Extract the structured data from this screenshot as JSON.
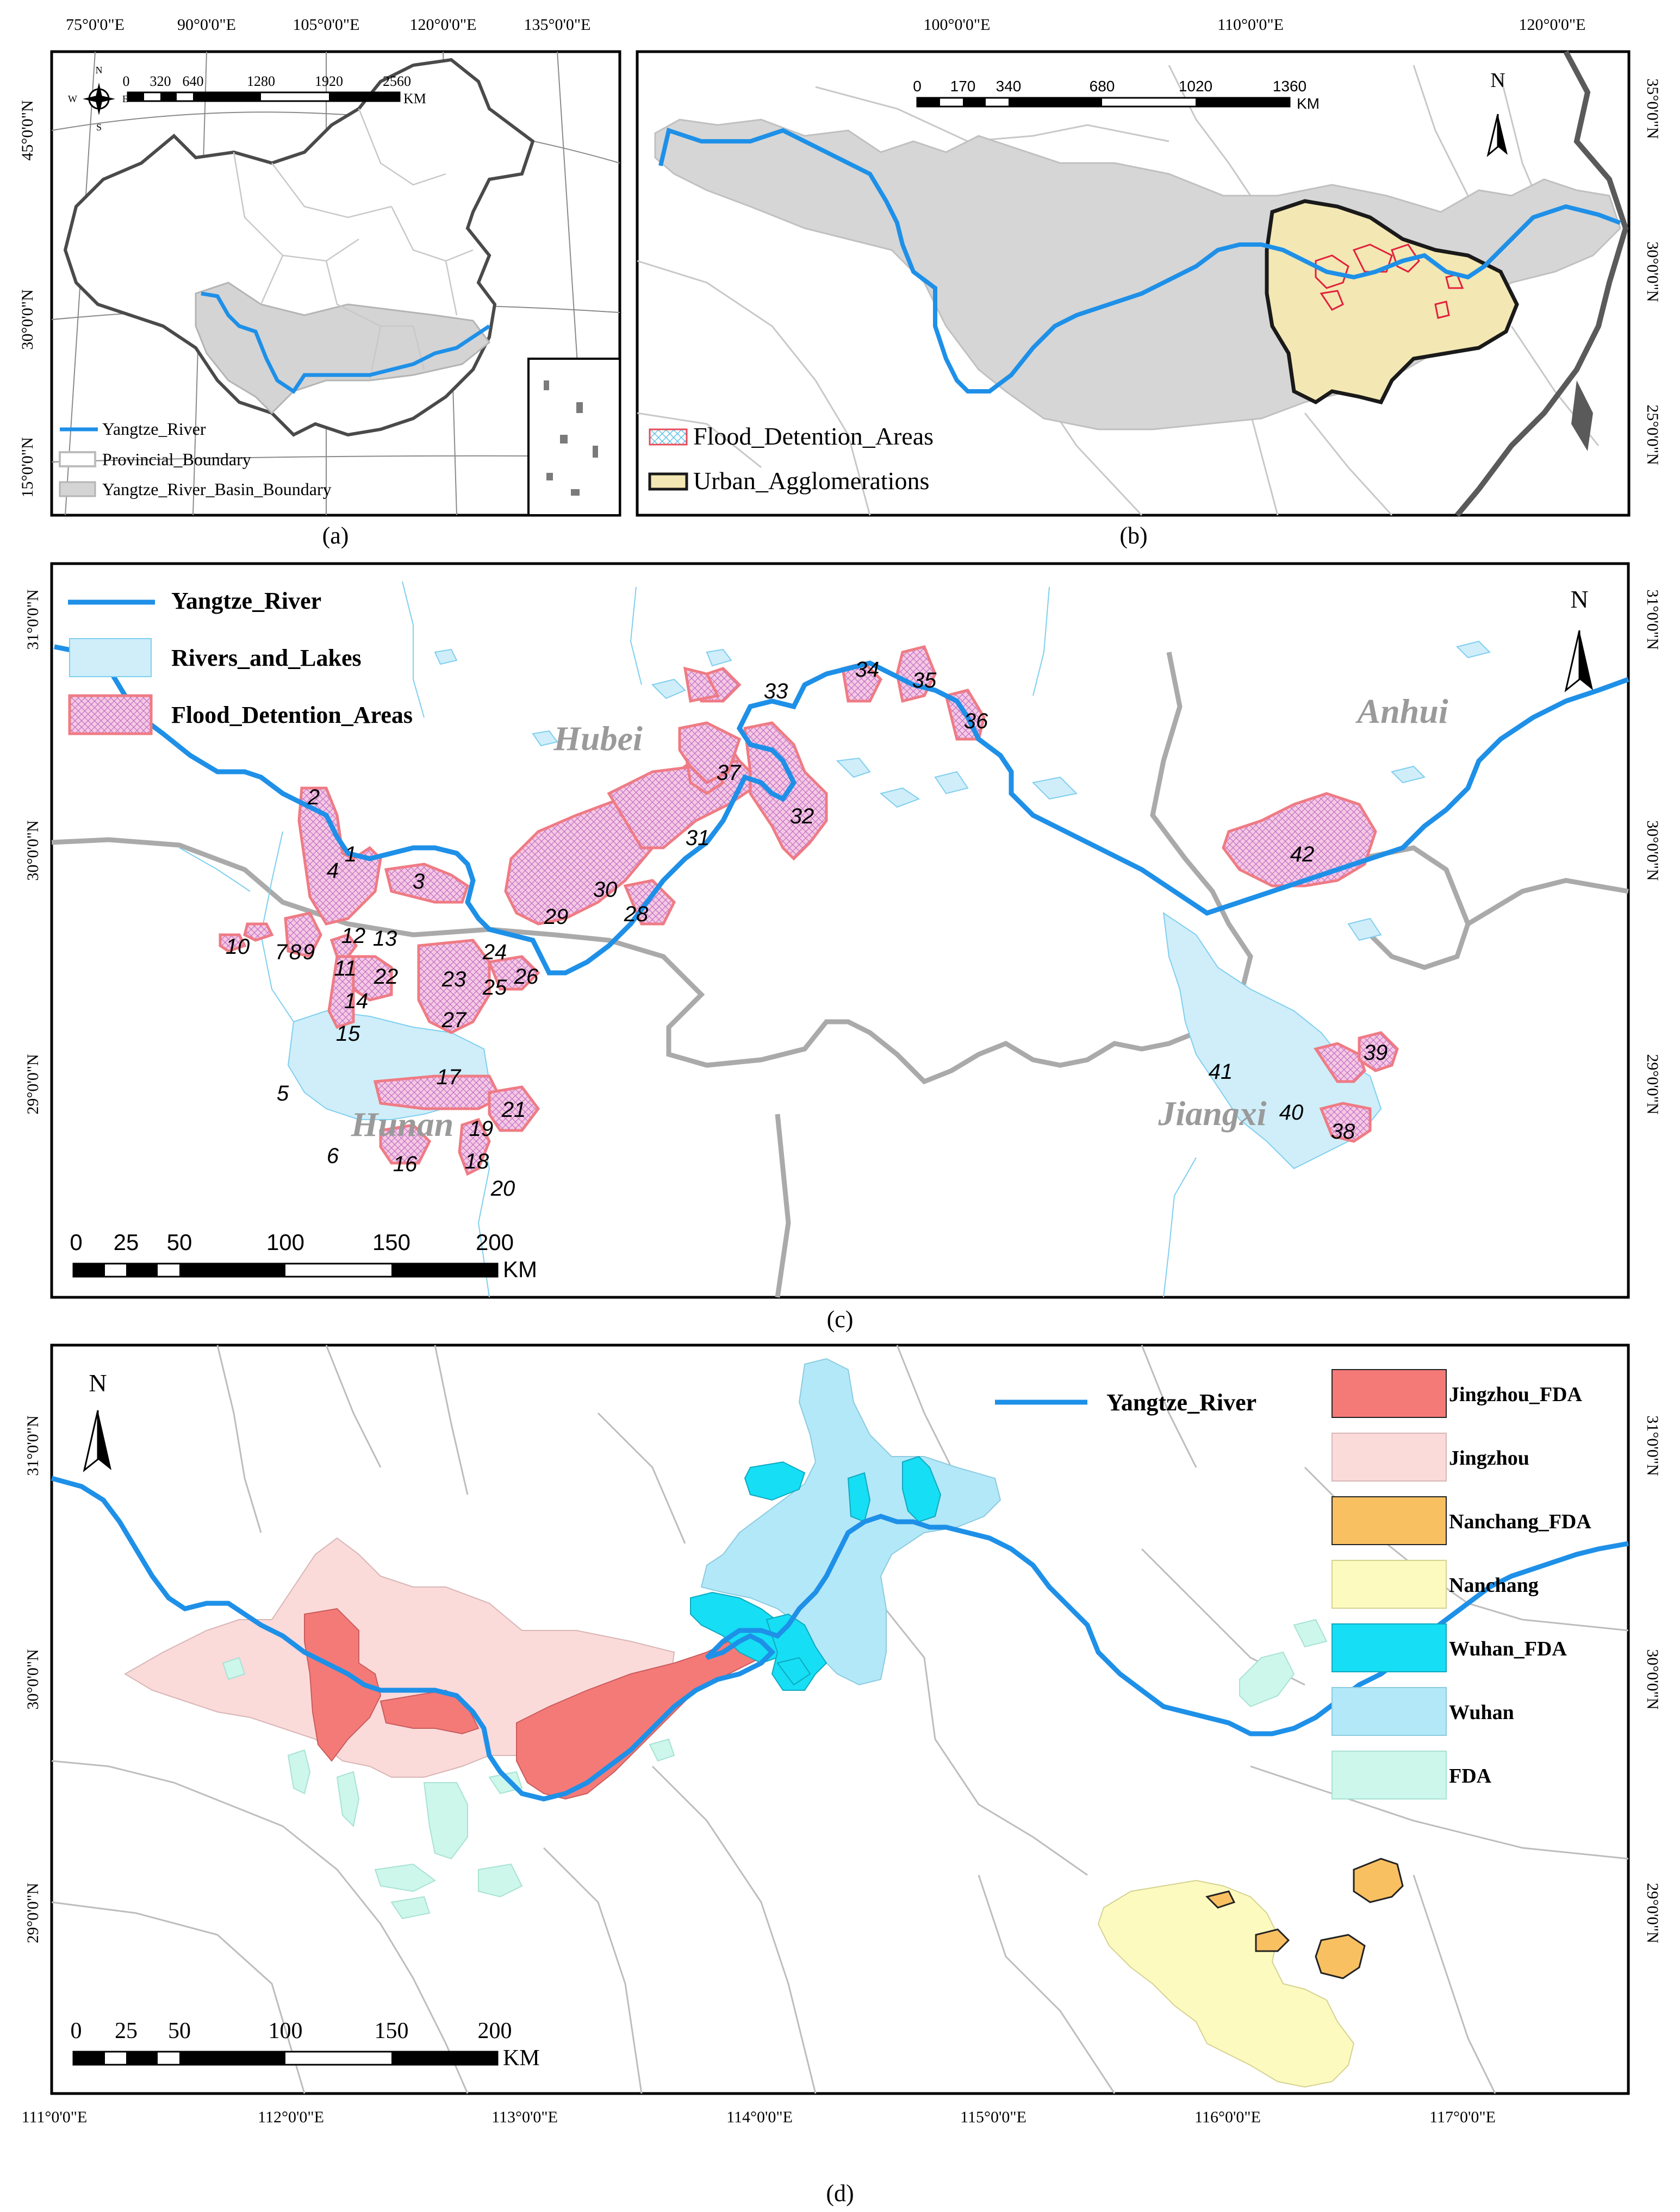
{
  "panel_a": {
    "caption": "(a)",
    "lon_labels": [
      "75°0'0\"E",
      "90°0'0\"E",
      "105°0'0\"E",
      "120°0'0\"E",
      "135°0'0\"E"
    ],
    "lat_labels": [
      "45°0'0\"N",
      "30°0'0\"N",
      "15°0'0\"N"
    ],
    "scale_ticks": [
      "0",
      "320",
      "640",
      "1280",
      "1920",
      "2560"
    ],
    "scale_unit": "KM",
    "compass": {
      "n": "N",
      "s": "S",
      "e": "E",
      "w": "W"
    },
    "legend": [
      {
        "label": "Yangtze_River",
        "color": "#1e90e8"
      },
      {
        "label": "Provincial_Boundary",
        "color": "#bdbdbd"
      },
      {
        "label": "Yangtze_River_Basin_Boundary",
        "color": "#b4b4b4"
      }
    ]
  },
  "panel_b": {
    "caption": "(b)",
    "lon_labels": [
      "100°0'0\"E",
      "110°0'0\"E",
      "120°0'0\"E"
    ],
    "lat_labels": [
      "35°0'0\"N",
      "30°0'0\"N",
      "25°0'0\"N"
    ],
    "scale_ticks": [
      "0",
      "170",
      "340",
      "680",
      "1020",
      "1360"
    ],
    "scale_unit": "KM",
    "north": "N",
    "legend": [
      {
        "label": "Flood_Detention_Areas",
        "color": "#e84b5a"
      },
      {
        "label": "Urban_Agglomerations",
        "color": "#f3e7b3"
      }
    ]
  },
  "panel_c": {
    "caption": "(c)",
    "lat_labels": [
      "31°0'0\"N",
      "30°0'0\"N",
      "29°0'0\"N"
    ],
    "scale_ticks": [
      "0",
      "25",
      "50",
      "100",
      "150",
      "200"
    ],
    "scale_unit": "KM",
    "north": "N",
    "legend": [
      {
        "label": "Yangtze_River",
        "color": "#1e90e8"
      },
      {
        "label": "Rivers_and_Lakes",
        "color": "#cfeefa"
      },
      {
        "label": "Flood_Detention_Areas",
        "color": "#f2b8d6"
      }
    ],
    "province_labels": [
      "Hubei",
      "Anhui",
      "Hunan",
      "Jiangxi"
    ],
    "fda_numbers": [
      "1",
      "2",
      "3",
      "4",
      "5",
      "6",
      "7",
      "8",
      "9",
      "10",
      "11",
      "12",
      "13",
      "14",
      "15",
      "16",
      "17",
      "18",
      "19",
      "20",
      "21",
      "22",
      "23",
      "24",
      "25",
      "26",
      "27",
      "28",
      "29",
      "30",
      "31",
      "32",
      "33",
      "34",
      "35",
      "36",
      "37",
      "38",
      "39",
      "40",
      "41",
      "42"
    ]
  },
  "panel_d": {
    "caption": "(d)",
    "lon_labels": [
      "111°0'0\"E",
      "112°0'0\"E",
      "113°0'0\"E",
      "114°0'0\"E",
      "115°0'0\"E",
      "116°0'0\"E",
      "117°0'0\"E"
    ],
    "lat_labels": [
      "31°0'0\"N",
      "30°0'0\"N",
      "29°0'0\"N"
    ],
    "scale_ticks": [
      "0",
      "25",
      "50",
      "100",
      "150",
      "200"
    ],
    "scale_unit": "KM",
    "north": "N",
    "river_legend": "Yangtze_River",
    "legend": [
      {
        "label": "Jingzhou_FDA",
        "color": "#f47a78"
      },
      {
        "label": "Jingzhou",
        "color": "#fbdada"
      },
      {
        "label": "Nanchang_FDA",
        "color": "#f9c062"
      },
      {
        "label": "Nanchang",
        "color": "#fdfac0"
      },
      {
        "label": "Wuhan_FDA",
        "color": "#16def5"
      },
      {
        "label": "Wuhan",
        "color": "#b3e8f9"
      },
      {
        "label": "FDA",
        "color": "#cdf7eb"
      }
    ]
  }
}
